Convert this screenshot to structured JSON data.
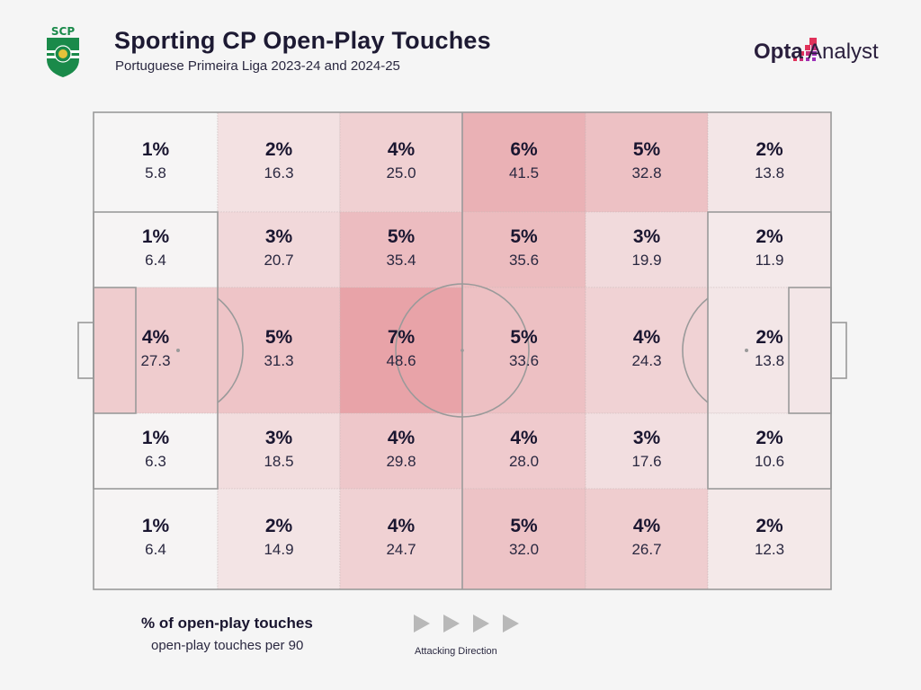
{
  "header": {
    "title": "Sporting CP Open-Play Touches",
    "subtitle": "Portuguese Primeira Liga 2023-24 and 2024-25",
    "crest_icon": "sporting-cp-crest",
    "crest_text_top": "SCP",
    "brand_bold": "Opta",
    "brand_light": " Analyst",
    "brand_icon": "opta-pixel-logo"
  },
  "colors": {
    "low": "#f6f5f5",
    "high": "#e8a3a8",
    "lines": "#9a9a9a",
    "text": "#1a1630",
    "crest_green": "#1a8a4a",
    "brand_pink": "#e0325a",
    "brand_purple": "#9b2fb8"
  },
  "legend": {
    "main": "% of open-play touches",
    "sub": "open-play touches per 90",
    "direction": "Attacking Direction",
    "arrow_icon": "play-triangle-icon"
  },
  "chart_data": {
    "type": "heatmap",
    "title": "Sporting CP Open-Play Touches",
    "subtitle": "Portuguese Primeira Liga 2023-24 and 2024-25",
    "layout": "football pitch, 6 columns x 5 rows, attacking left to right",
    "metric_primary": "% of open-play touches",
    "metric_secondary": "open-play touches per 90",
    "rows": [
      {
        "pct": [
          "1%",
          "2%",
          "4%",
          "6%",
          "5%",
          "2%"
        ],
        "per90": [
          "5.8",
          "16.3",
          "25.0",
          "41.5",
          "32.8",
          "13.8"
        ]
      },
      {
        "pct": [
          "1%",
          "3%",
          "5%",
          "5%",
          "3%",
          "2%"
        ],
        "per90": [
          "6.4",
          "20.7",
          "35.4",
          "35.6",
          "19.9",
          "11.9"
        ]
      },
      {
        "pct": [
          "4%",
          "5%",
          "7%",
          "5%",
          "4%",
          "2%"
        ],
        "per90": [
          "27.3",
          "31.3",
          "48.6",
          "33.6",
          "24.3",
          "13.8"
        ]
      },
      {
        "pct": [
          "1%",
          "3%",
          "4%",
          "4%",
          "3%",
          "2%"
        ],
        "per90": [
          "6.3",
          "18.5",
          "29.8",
          "28.0",
          "17.6",
          "10.6"
        ]
      },
      {
        "pct": [
          "1%",
          "2%",
          "4%",
          "5%",
          "4%",
          "2%"
        ],
        "per90": [
          "6.4",
          "14.9",
          "24.7",
          "32.0",
          "26.7",
          "12.3"
        ]
      }
    ],
    "legend": "bottom-left",
    "direction": "Attacking Direction"
  }
}
